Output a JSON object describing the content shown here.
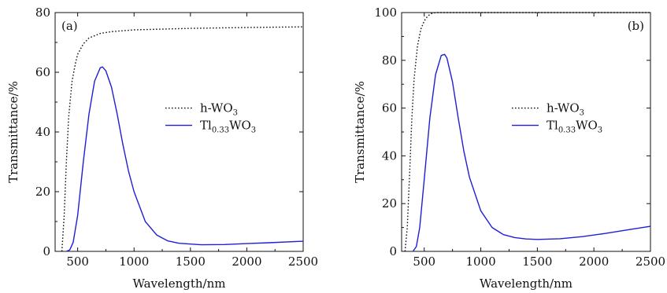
{
  "colors": {
    "hwo3": "#111111",
    "tl": "#1f1fd6",
    "axis": "#111111"
  },
  "chart_data": [
    {
      "type": "line",
      "panel_label": "(a)",
      "xlabel": "Wavelength/nm",
      "ylabel": "Transmittance/%",
      "xlim": [
        300,
        2500
      ],
      "ylim": [
        0,
        80
      ],
      "xticks": [
        500,
        1000,
        1500,
        2000,
        2500
      ],
      "yticks": [
        0,
        20,
        40,
        60,
        80
      ],
      "legend": "center-right",
      "series": [
        {
          "name": "h-WO",
          "name_sub": "3",
          "style": "dotted",
          "x": [
            360,
            380,
            400,
            420,
            450,
            480,
            500,
            550,
            600,
            700,
            800,
            1000,
            1500,
            2000,
            2500
          ],
          "y": [
            0,
            12,
            30,
            45,
            57,
            63,
            66,
            69.5,
            71.5,
            73,
            73.6,
            74.2,
            74.7,
            75,
            75.2
          ]
        },
        {
          "name": "Tl",
          "name_sub": "0.33",
          "name_tail": "WO",
          "name_tail_sub": "3",
          "style": "solid",
          "x": [
            400,
            430,
            460,
            500,
            550,
            600,
            650,
            700,
            720,
            750,
            800,
            850,
            900,
            950,
            1000,
            1100,
            1200,
            1300,
            1400,
            1600,
            1800,
            2000,
            2200,
            2500
          ],
          "y": [
            0,
            0.5,
            3,
            12,
            30,
            46,
            57,
            61.5,
            61.8,
            60.5,
            55,
            46,
            36,
            27,
            20,
            10,
            5.5,
            3.5,
            2.7,
            2.2,
            2.3,
            2.6,
            2.9,
            3.4
          ]
        }
      ]
    },
    {
      "type": "line",
      "panel_label": "(b)",
      "xlabel": "Wavelength/nm",
      "ylabel": "Transmittance/%",
      "xlim": [
        300,
        2500
      ],
      "ylim": [
        0,
        100
      ],
      "xticks": [
        500,
        1000,
        1500,
        2000,
        2500
      ],
      "yticks": [
        0,
        20,
        40,
        60,
        80,
        100
      ],
      "legend": "center-right",
      "series": [
        {
          "name": "h-WO",
          "name_sub": "3",
          "style": "dotted",
          "x": [
            330,
            350,
            370,
            390,
            410,
            440,
            470,
            500,
            530,
            560,
            600,
            700,
            1000,
            2500
          ],
          "y": [
            0,
            10,
            32,
            55,
            72,
            86,
            93,
            96.5,
            98.5,
            99.5,
            100,
            100,
            100,
            100
          ]
        },
        {
          "name": "Tl",
          "name_sub": "0.33",
          "name_tail": "WO",
          "name_tail_sub": "3",
          "style": "solid",
          "x": [
            400,
            430,
            460,
            500,
            550,
            600,
            650,
            680,
            700,
            750,
            800,
            850,
            900,
            1000,
            1100,
            1200,
            1300,
            1400,
            1500,
            1700,
            1900,
            2100,
            2300,
            2500
          ],
          "y": [
            0,
            2,
            10,
            30,
            56,
            74,
            82,
            82.5,
            81,
            71,
            56,
            42,
            31,
            17,
            10,
            7,
            5.8,
            5.2,
            5,
            5.3,
            6.2,
            7.5,
            9,
            10.5
          ]
        }
      ]
    }
  ]
}
